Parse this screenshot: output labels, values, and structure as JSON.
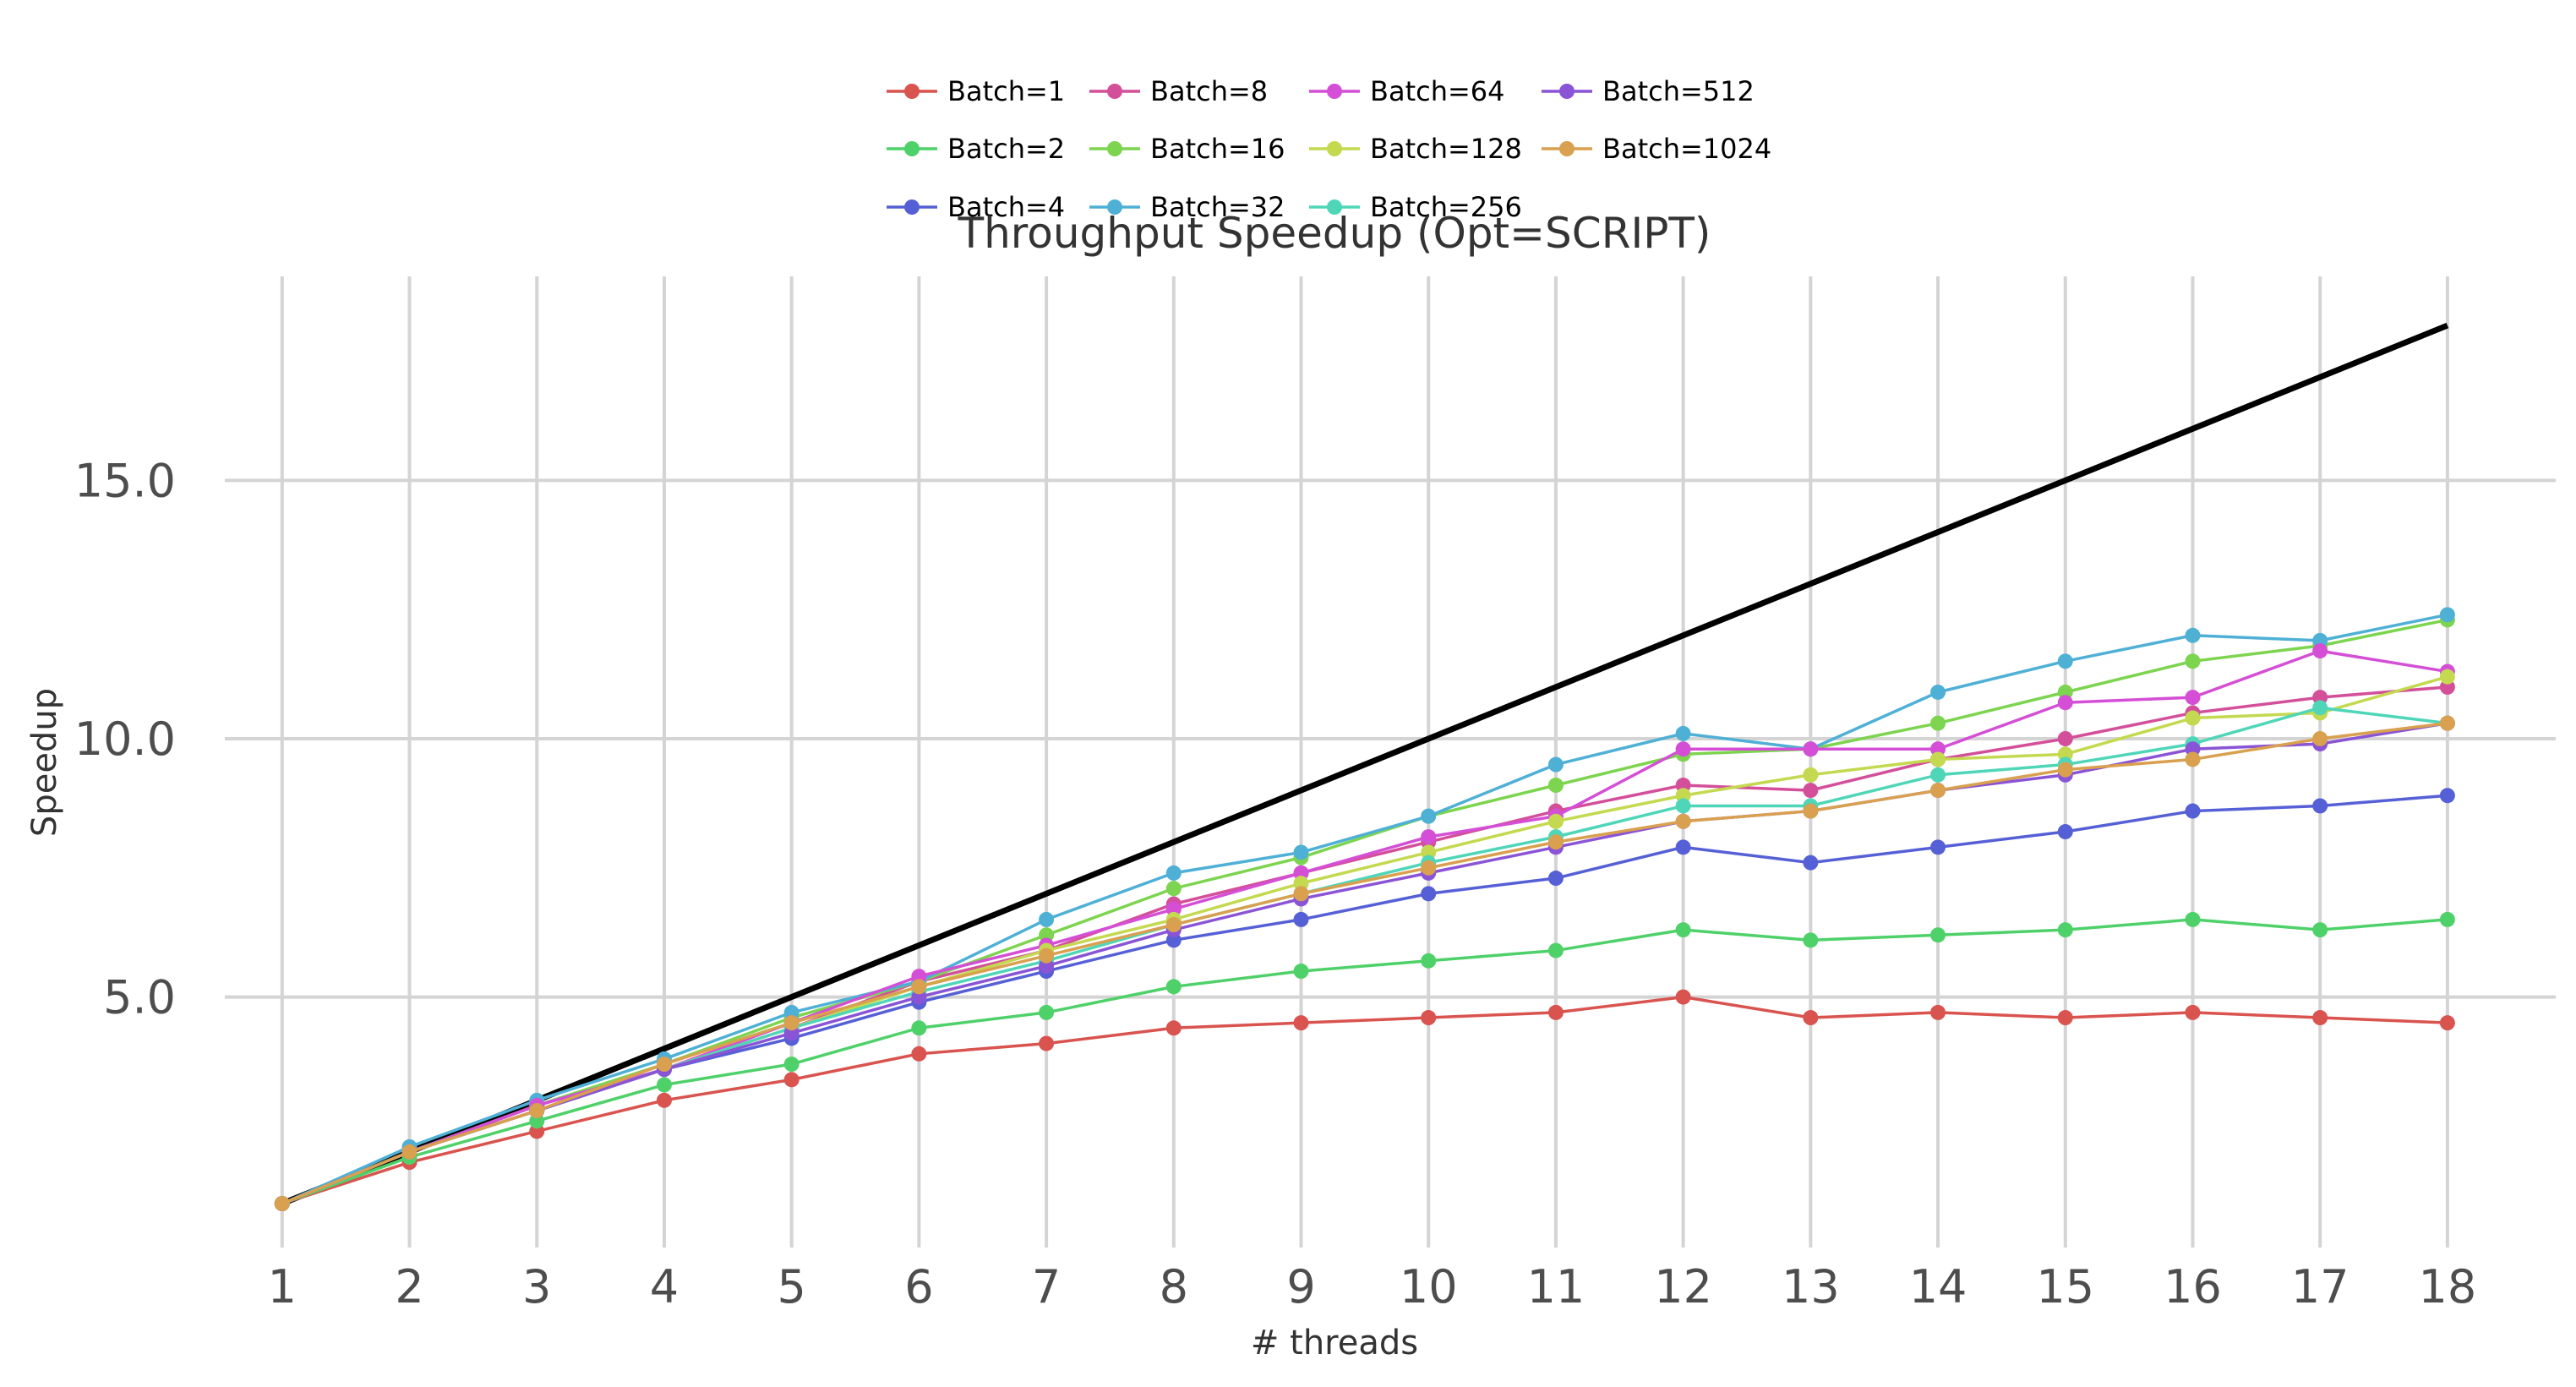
{
  "chart_data": {
    "type": "line",
    "title": "Throughput Speedup (Opt=SCRIPT)",
    "xlabel": "# threads",
    "ylabel": "Speedup",
    "x": [
      1,
      2,
      3,
      4,
      5,
      6,
      7,
      8,
      9,
      10,
      11,
      12,
      13,
      14,
      15,
      16,
      17,
      18
    ],
    "x_tick_labels": [
      "1",
      "2",
      "3",
      "4",
      "5",
      "6",
      "7",
      "8",
      "9",
      "10",
      "11",
      "12",
      "13",
      "14",
      "15",
      "16",
      "17",
      "18"
    ],
    "y_ticks": [
      5.0,
      10.0,
      15.0
    ],
    "y_tick_labels": [
      "5.0",
      "10.0",
      "15.0"
    ],
    "xlim": [
      0.55,
      18.85
    ],
    "ylim": [
      0.15,
      18.95
    ],
    "grid": true,
    "legend_position": "top-center",
    "ideal_line": {
      "x": [
        1,
        18
      ],
      "y": [
        1,
        18
      ],
      "color": "#000000"
    },
    "series": [
      {
        "name": "Batch=1",
        "color": "#d9534f",
        "values": [
          1.0,
          1.8,
          2.4,
          3.0,
          3.4,
          3.9,
          4.1,
          4.4,
          4.5,
          4.6,
          4.7,
          5.0,
          4.6,
          4.7,
          4.6,
          4.7,
          4.6,
          4.5
        ]
      },
      {
        "name": "Batch=2",
        "color": "#4fd16a",
        "values": [
          1.0,
          1.9,
          2.6,
          3.3,
          3.7,
          4.4,
          4.7,
          5.2,
          5.5,
          5.7,
          5.9,
          6.3,
          6.1,
          6.2,
          6.3,
          6.5,
          6.3,
          6.5
        ]
      },
      {
        "name": "Batch=4",
        "color": "#5660d6",
        "values": [
          1.0,
          2.0,
          2.8,
          3.6,
          4.2,
          4.9,
          5.5,
          6.1,
          6.5,
          7.0,
          7.3,
          7.9,
          7.6,
          7.9,
          8.2,
          8.6,
          8.7,
          8.9
        ]
      },
      {
        "name": "Batch=8",
        "color": "#d44f9a",
        "values": [
          1.0,
          2.0,
          2.9,
          3.6,
          4.4,
          5.3,
          5.9,
          6.8,
          7.4,
          8.0,
          8.6,
          9.1,
          9.0,
          9.6,
          10.0,
          10.5,
          10.8,
          11.0
        ]
      },
      {
        "name": "Batch=16",
        "color": "#7cd44f",
        "values": [
          1.0,
          2.0,
          2.9,
          3.7,
          4.6,
          5.3,
          6.2,
          7.1,
          7.7,
          8.5,
          9.1,
          9.7,
          9.8,
          10.3,
          10.9,
          11.5,
          11.8,
          12.3
        ]
      },
      {
        "name": "Batch=32",
        "color": "#4fb0d6",
        "values": [
          1.0,
          2.1,
          3.0,
          3.8,
          4.7,
          5.3,
          6.5,
          7.4,
          7.8,
          8.5,
          9.5,
          10.1,
          9.8,
          10.9,
          11.5,
          12.0,
          11.9,
          12.4
        ]
      },
      {
        "name": "Batch=64",
        "color": "#d44fd6",
        "values": [
          1.0,
          2.0,
          2.9,
          3.6,
          4.5,
          5.4,
          6.0,
          6.7,
          7.4,
          8.1,
          8.5,
          9.8,
          9.8,
          9.8,
          10.7,
          10.8,
          11.7,
          11.3
        ]
      },
      {
        "name": "Batch=128",
        "color": "#c4d94f",
        "values": [
          1.0,
          2.0,
          2.8,
          3.6,
          4.4,
          5.2,
          5.9,
          6.5,
          7.2,
          7.8,
          8.4,
          8.9,
          9.3,
          9.6,
          9.7,
          10.4,
          10.5,
          11.2
        ]
      },
      {
        "name": "Batch=256",
        "color": "#4fd6b8",
        "values": [
          1.0,
          2.0,
          2.8,
          3.6,
          4.4,
          5.1,
          5.7,
          6.4,
          7.0,
          7.6,
          8.1,
          8.7,
          8.7,
          9.3,
          9.5,
          9.9,
          10.6,
          10.3
        ]
      },
      {
        "name": "Batch=512",
        "color": "#8a54d6",
        "values": [
          1.0,
          2.0,
          2.8,
          3.6,
          4.3,
          5.0,
          5.6,
          6.3,
          6.9,
          7.4,
          7.9,
          8.4,
          8.6,
          9.0,
          9.3,
          9.8,
          9.9,
          10.3
        ]
      },
      {
        "name": "Batch=1024",
        "color": "#d9a04f",
        "values": [
          1.0,
          2.0,
          2.8,
          3.7,
          4.5,
          5.2,
          5.8,
          6.4,
          7.0,
          7.5,
          8.0,
          8.4,
          8.6,
          9.0,
          9.4,
          9.6,
          10.0,
          10.3
        ]
      }
    ]
  }
}
